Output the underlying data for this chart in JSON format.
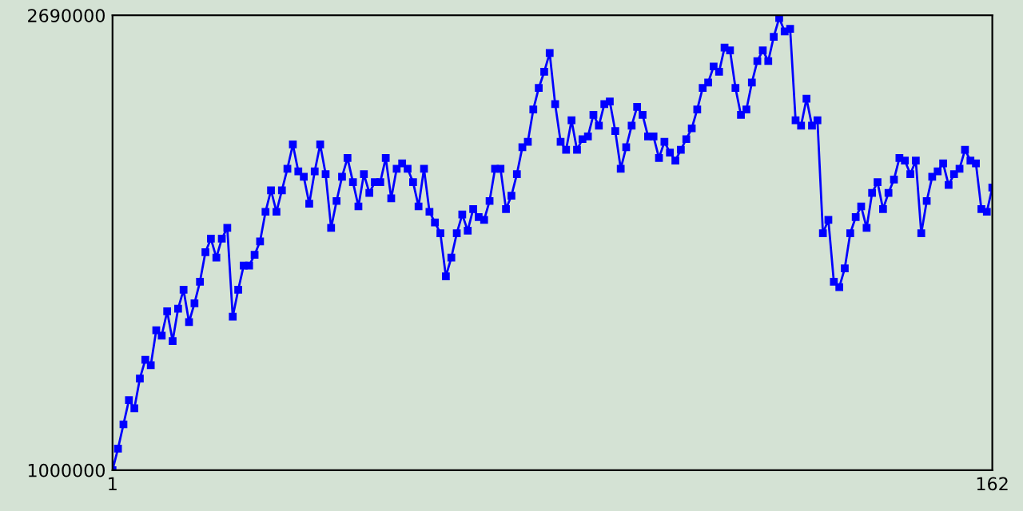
{
  "chart_data": {
    "type": "line",
    "x": [
      1,
      2,
      3,
      4,
      5,
      6,
      7,
      8,
      9,
      10,
      11,
      12,
      13,
      14,
      15,
      16,
      17,
      18,
      19,
      20,
      21,
      22,
      23,
      24,
      25,
      26,
      27,
      28,
      29,
      30,
      31,
      32,
      33,
      34,
      35,
      36,
      37,
      38,
      39,
      40,
      41,
      42,
      43,
      44,
      45,
      46,
      47,
      48,
      49,
      50,
      51,
      52,
      53,
      54,
      55,
      56,
      57,
      58,
      59,
      60,
      61,
      62,
      63,
      64,
      65,
      66,
      67,
      68,
      69,
      70,
      71,
      72,
      73,
      74,
      75,
      76,
      77,
      78,
      79,
      80,
      81,
      82,
      83,
      84,
      85,
      86,
      87,
      88,
      89,
      90,
      91,
      92,
      93,
      94,
      95,
      96,
      97,
      98,
      99,
      100,
      101,
      102,
      103,
      104,
      105,
      106,
      107,
      108,
      109,
      110,
      111,
      112,
      113,
      114,
      115,
      116,
      117,
      118,
      119,
      120,
      121,
      122,
      123,
      124,
      125,
      126,
      127,
      128,
      129,
      130,
      131,
      132,
      133,
      134,
      135,
      136,
      137,
      138,
      139,
      140,
      141,
      142,
      143,
      144,
      145,
      146,
      147,
      148,
      149,
      150,
      151,
      152,
      153,
      154,
      155,
      156,
      157,
      158,
      159,
      160,
      161,
      162
    ],
    "series": [
      {
        "color": "#0000ff",
        "values": [
          1000000,
          1080000,
          1170000,
          1260000,
          1230000,
          1340000,
          1410000,
          1390000,
          1520000,
          1500000,
          1590000,
          1480000,
          1600000,
          1670000,
          1550000,
          1620000,
          1700000,
          1810000,
          1860000,
          1790000,
          1860000,
          1900000,
          1570000,
          1670000,
          1760000,
          1760000,
          1800000,
          1850000,
          1960000,
          2040000,
          1960000,
          2040000,
          2120000,
          2210000,
          2110000,
          2090000,
          1990000,
          2110000,
          2210000,
          2100000,
          1900000,
          2000000,
          2090000,
          2160000,
          2070000,
          1980000,
          2100000,
          2030000,
          2070000,
          2070000,
          2160000,
          2010000,
          2120000,
          2140000,
          2120000,
          2070000,
          1980000,
          2120000,
          1960000,
          1920000,
          1880000,
          1720000,
          1790000,
          1880000,
          1950000,
          1890000,
          1970000,
          1940000,
          1930000,
          2000000,
          2120000,
          2120000,
          1970000,
          2020000,
          2100000,
          2200000,
          2220000,
          2340000,
          2420000,
          2480000,
          2550000,
          2360000,
          2220000,
          2190000,
          2300000,
          2190000,
          2230000,
          2240000,
          2320000,
          2280000,
          2360000,
          2370000,
          2260000,
          2120000,
          2200000,
          2280000,
          2350000,
          2320000,
          2240000,
          2240000,
          2160000,
          2220000,
          2180000,
          2150000,
          2190000,
          2230000,
          2270000,
          2340000,
          2420000,
          2440000,
          2500000,
          2480000,
          2570000,
          2560000,
          2420000,
          2320000,
          2340000,
          2440000,
          2520000,
          2560000,
          2520000,
          2610000,
          2680000,
          2630000,
          2640000,
          2300000,
          2280000,
          2380000,
          2280000,
          2300000,
          1880000,
          1930000,
          1700000,
          1680000,
          1750000,
          1880000,
          1940000,
          1980000,
          1900000,
          2030000,
          2070000,
          1970000,
          2030000,
          2080000,
          2160000,
          2150000,
          2100000,
          2150000,
          1880000,
          2000000,
          2090000,
          2110000,
          2140000,
          2060000,
          2100000,
          2120000,
          2190000,
          2150000,
          2140000,
          1970000,
          1960000,
          2050000
        ]
      }
    ],
    "xlim": [
      1,
      162
    ],
    "xticks": [
      1,
      162
    ],
    "ylim": [
      1000000,
      2690000
    ],
    "yticks": [
      1000000,
      2690000
    ],
    "grid": false,
    "legend": false,
    "marker": "square",
    "line_style": "solid"
  }
}
